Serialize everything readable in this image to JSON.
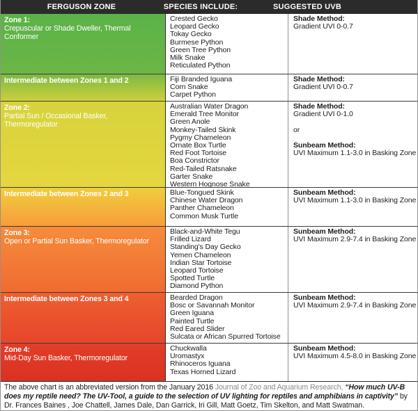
{
  "header": {
    "col1": "FERGUSON ZONE",
    "col2": "SPECIES INCLUDE:",
    "col3": "SUGGESTED UVB"
  },
  "colors": {
    "header_bg": "#2b2b2b",
    "header_text": "#ffffff",
    "zone_text": "#ffffff"
  },
  "rows": [
    {
      "zone": {
        "title": "Zone 1:",
        "desc": "Crepuscular or Shade Dweller, Thermal Conformer"
      },
      "bg": {
        "top": "#5bb248",
        "bottom": "#6cb646"
      },
      "species": [
        "Crested Gecko",
        "Leopard Gecko",
        "Tokay Gecko",
        "Burmese Python",
        "Green Tree Python",
        "Milk Snake",
        "Reticulated Python"
      ],
      "uvb": [
        {
          "text": "Shade Method:"
        },
        {
          "text": "Gradient UVI 0-0.7"
        }
      ]
    },
    {
      "zone": {
        "title": "Intermediate between Zones 1 and 2"
      },
      "bg": {
        "top": "#7cb944",
        "bottom": "#ccd03b"
      },
      "species": [
        "Fiji Branded Iguana",
        "Corn Snake",
        "Carpet Python"
      ],
      "uvb": [
        {
          "text": "Shade Method:"
        },
        {
          "text": "Gradient UVI 0-0.7"
        }
      ]
    },
    {
      "zone": {
        "title": "Zone 2:",
        "desc": "Partial Sun / Occasional Basker, Thermoregulator"
      },
      "bg": {
        "top": "#d7d33c",
        "bottom": "#e5d63e"
      },
      "species": [
        "Australian Water Dragon",
        "Emerald Tree Monitor",
        "Green Anole",
        "Monkey-Tailed Skink",
        "Pygmy Chameleon",
        "Ornate Box Turtle",
        "Red Foot Tortoise",
        "Boa Constrictor",
        "Red-Tailed Ratsnake",
        "Garter Snake",
        "Western Hognose Snake"
      ],
      "uvb": [
        {
          "text": "Shade Method:"
        },
        {
          "text": "Gradient UVI 0-1.0"
        },
        {
          "text": ""
        },
        {
          "text": "or"
        },
        {
          "text": ""
        },
        {
          "text": "Sunbeam Method:"
        },
        {
          "text": "UVI Maximum 1.1-3.0 in Basking Zone"
        }
      ]
    },
    {
      "zone": {
        "title": "Intermediate between Zones 2 and 3"
      },
      "bg": {
        "top": "#f0ce3d",
        "bottom": "#f79d3b"
      },
      "species": [
        "Blue-Tongued Skink",
        "Chinese Water Dragon",
        "Panther Chameleon",
        "Common Musk Turtle"
      ],
      "uvb": [
        {
          "text": "Sunbeam Method:"
        },
        {
          "text": "UVI Maximum 1.1-3.0 in Basking Zone"
        }
      ]
    },
    {
      "zone": {
        "title": "Zone 3:",
        "desc": "Open or Partial Sun Basker, Thermoregulator"
      },
      "bg": {
        "top": "#f68c3b",
        "bottom": "#f06b31"
      },
      "species": [
        "Black-and-White Tegu",
        "Frilled Lizard",
        "Standing's Day Gecko",
        "Yemen Chameleon",
        "Indian Star Tortoise",
        "Leopard Tortoise",
        "Spotted Turtle",
        "Diamond Python"
      ],
      "uvb": [
        {
          "text": "Sunbeam Method:"
        },
        {
          "text": "UVI Maximum 2.9-7.4 in Basking Zone"
        }
      ]
    },
    {
      "zone": {
        "title": "Intermediate between Zones 3 and 4"
      },
      "bg": {
        "top": "#ee5f31",
        "bottom": "#e6462b"
      },
      "species": [
        "Bearded Dragon",
        "Bosc or Savannah Monitor",
        "Green Iguana",
        "Painted Turtle",
        "Red Eared Slider",
        "Sulcata or African Spurred Tortoise"
      ],
      "uvb": [
        {
          "text": "Sunbeam Method:"
        },
        {
          "text": "UVI Maximum 2.9-7.4 in Basking Zone"
        }
      ]
    },
    {
      "zone": {
        "title": "Zone 4:",
        "desc": "Mid-Day Sun Basker, Thermoregulator"
      },
      "bg": {
        "top": "#e23e28",
        "bottom": "#db3123"
      },
      "species": [
        "Chuckwalla",
        "Uromastyx",
        "Rhinoceros Iguana",
        "Texas Horned Lizard"
      ],
      "uvb": [
        {
          "text": "Sunbeam Method:"
        },
        {
          "text": "UVI Maximum 4.5-8.0 in Basking Zone"
        }
      ]
    }
  ],
  "footer": {
    "segments": [
      {
        "text": "The above chart is an abbreviated version from the January 2016 "
      },
      {
        "text": "Journal of Zoo and Aquarium Research, "
      },
      {
        "text": "“How much UV-B does my reptile need? The UV-Tool, a guide to the selection of UV lighting for reptiles and amphibians in captivity”"
      },
      {
        "text": " by Dr. Frances Baines , Joe Chattell, James Dale, Dan Garrick, Iri Gill, Matt Goetz, Tim Skelton, and Matt Swatman."
      }
    ]
  }
}
